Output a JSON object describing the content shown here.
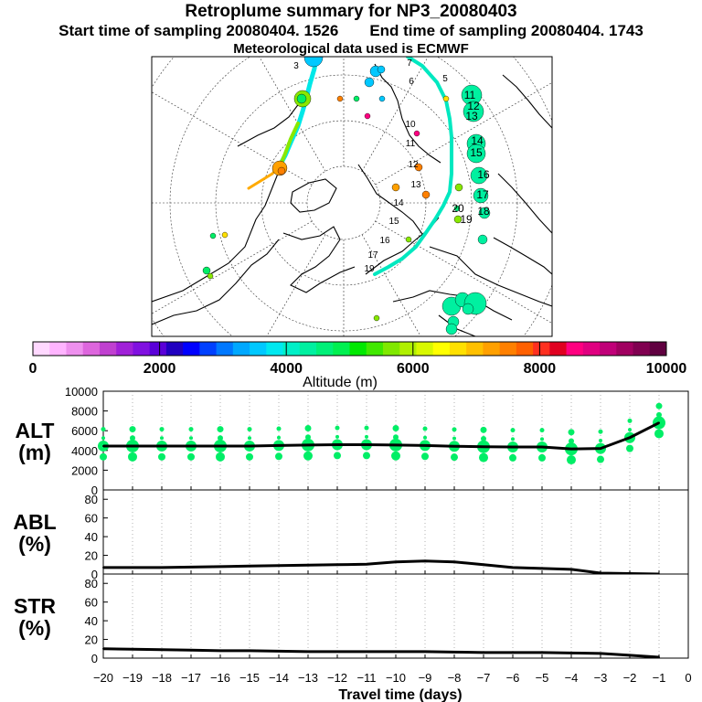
{
  "header": {
    "title": "Retroplume summary for NP3_20080403",
    "start_label": "Start time of sampling 20080404.  1526",
    "end_label": "End time of sampling 20080404.  1743",
    "met_label": "Meteorological data used is ECMWF"
  },
  "map": {
    "day_labels": [
      "3",
      "5",
      "6",
      "7",
      "10",
      "11",
      "12",
      "13",
      "14",
      "15",
      "16",
      "17",
      "19",
      "11",
      "12",
      "13",
      "14",
      "15",
      "16",
      "17",
      "18",
      "19",
      "20"
    ]
  },
  "colorbar": {
    "tick_labels": [
      "0",
      "2000",
      "4000",
      "6000",
      "8000",
      "10000"
    ],
    "axis_label": "Altitude (m)",
    "colors": [
      "#ffd8ff",
      "#ffb4ff",
      "#ee90ee",
      "#dd66dd",
      "#c040d0",
      "#a020d8",
      "#8010e0",
      "#5a00d8",
      "#2000c0",
      "#0000ff",
      "#0040ff",
      "#0078ff",
      "#00a8ff",
      "#00c8ff",
      "#00e8f0",
      "#00f0c8",
      "#00f0a0",
      "#00f078",
      "#00f050",
      "#00e800",
      "#40e800",
      "#80e800",
      "#b0f000",
      "#d8f800",
      "#ffff00",
      "#ffe000",
      "#ffc000",
      "#ffa000",
      "#ff8000",
      "#ff6000",
      "#ff3020",
      "#e00020",
      "#ff0080",
      "#e00080",
      "#c00078",
      "#a00060",
      "#800050",
      "#600040"
    ]
  },
  "y_labels": {
    "alt": [
      "ALT",
      "(m)"
    ],
    "abl": [
      "ABL",
      "(%)"
    ],
    "str": [
      "STR",
      "(%)"
    ]
  },
  "x_axis_label": "Travel time (days)",
  "chart_data": [
    {
      "type": "line",
      "title": "ALT",
      "ylabel": "(m)",
      "x": [
        -20,
        -19,
        -18,
        -17,
        -16,
        -15,
        -14,
        -13,
        -12,
        -11,
        -10,
        -9,
        -8,
        -7,
        -6,
        -5,
        -4,
        -3,
        -2,
        -1
      ],
      "values": [
        4450,
        4450,
        4450,
        4450,
        4450,
        4450,
        4500,
        4550,
        4580,
        4580,
        4550,
        4500,
        4420,
        4380,
        4350,
        4350,
        4150,
        4200,
        5300,
        6800
      ],
      "ylim": [
        0,
        10000
      ],
      "yticks": [
        "0",
        "2000",
        "4000",
        "6000",
        "8000",
        "10000"
      ],
      "color": "#00ee66"
    },
    {
      "type": "line",
      "title": "ABL",
      "ylabel": "(%)",
      "x": [
        -20,
        -19,
        -18,
        -17,
        -16,
        -15,
        -14,
        -13,
        -12,
        -11,
        -10,
        -9,
        -8,
        -7,
        -6,
        -5,
        -4,
        -3,
        -2,
        -1
      ],
      "values": [
        7,
        7,
        7,
        7.5,
        8,
        8.5,
        9,
        9.5,
        10,
        10.5,
        13,
        14,
        13,
        10,
        7,
        6,
        5,
        1,
        0.5,
        0
      ],
      "ylim": [
        0,
        90
      ],
      "yticks": [
        "0",
        "20",
        "40",
        "60",
        "80"
      ]
    },
    {
      "type": "line",
      "title": "STR",
      "ylabel": "(%)",
      "x": [
        -20,
        -19,
        -18,
        -17,
        -16,
        -15,
        -14,
        -13,
        -12,
        -11,
        -10,
        -9,
        -8,
        -7,
        -6,
        -5,
        -4,
        -3,
        -2,
        -1
      ],
      "values": [
        10,
        9.5,
        9,
        8.5,
        8,
        8,
        7.5,
        7,
        7,
        7,
        7,
        7,
        6.5,
        6,
        6,
        6,
        5.5,
        5,
        3,
        1
      ],
      "ylim": [
        0,
        90
      ],
      "yticks": [
        "0",
        "20",
        "40",
        "60",
        "80"
      ]
    }
  ],
  "x_ticks": [
    "−20",
    "−19",
    "−18",
    "−17",
    "−16",
    "−15",
    "−14",
    "−13",
    "−12",
    "−11",
    "−10",
    "−9",
    "−8",
    "−7",
    "−6",
    "−5",
    "−4",
    "−3",
    "−2",
    "−1",
    "0"
  ]
}
